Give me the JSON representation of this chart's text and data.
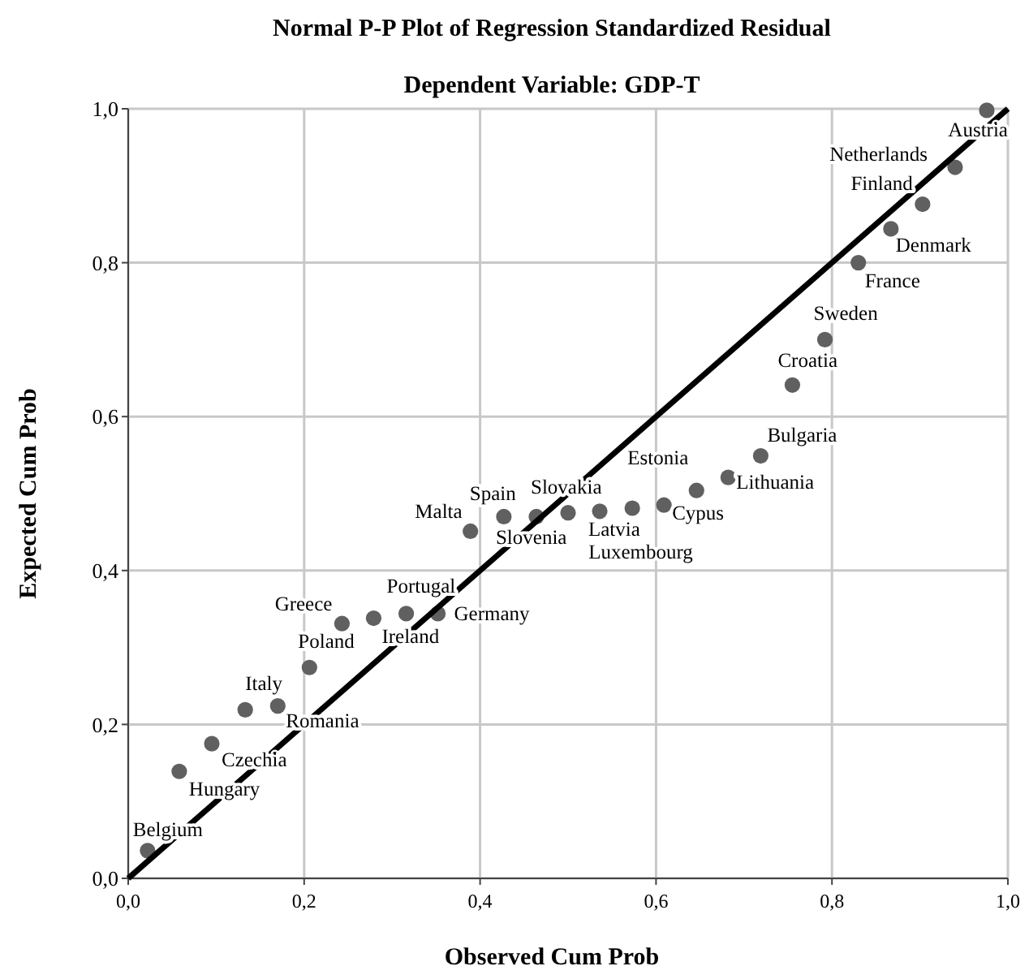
{
  "chart_data": {
    "type": "scatter",
    "title": "Normal P-P Plot of Regression Standardized Residual",
    "subtitle": "Dependent Variable: GDP-T",
    "xlabel": "Observed Cum Prob",
    "ylabel": "Expected Cum Prob",
    "xlim": [
      0,
      1
    ],
    "ylim": [
      0,
      1
    ],
    "xticks": [
      {
        "value": 0,
        "label": "0,0"
      },
      {
        "value": 0.2,
        "label": "0,2"
      },
      {
        "value": 0.4,
        "label": "0,4"
      },
      {
        "value": 0.6,
        "label": "0,6"
      },
      {
        "value": 0.8,
        "label": "0,8"
      },
      {
        "value": 1,
        "label": "1,0"
      }
    ],
    "yticks": [
      {
        "value": 0,
        "label": "0,0"
      },
      {
        "value": 0.2,
        "label": "0,2"
      },
      {
        "value": 0.4,
        "label": "0,4"
      },
      {
        "value": 0.6,
        "label": "0,6"
      },
      {
        "value": 0.8,
        "label": "0,8"
      },
      {
        "value": 1,
        "label": "1,0"
      }
    ],
    "grid": true,
    "series": [
      {
        "marker": "circle",
        "color": "#606060",
        "x": [
          0.022,
          0.058,
          0.095,
          0.133,
          0.17,
          0.206,
          0.243,
          0.279,
          0.316,
          0.352,
          0.389,
          0.427,
          0.464,
          0.5,
          0.536,
          0.573,
          0.609,
          0.646,
          0.682,
          0.719,
          0.755,
          0.792,
          0.83,
          0.867,
          0.903,
          0.94,
          0.976
        ],
        "values": [
          0.036,
          0.139,
          0.175,
          0.219,
          0.224,
          0.274,
          0.331,
          0.338,
          0.344,
          0.344,
          0.451,
          0.47,
          0.47,
          0.475,
          0.477,
          0.481,
          0.485,
          0.504,
          0.521,
          0.549,
          0.641,
          0.7,
          0.8,
          0.844,
          0.876,
          0.924,
          0.998
        ]
      },
      {
        "type": "line",
        "color": "#000000",
        "x": [
          0,
          1
        ],
        "values": [
          0,
          1
        ],
        "line_style": "solid"
      }
    ],
    "annotations": [
      {
        "text": "Belgium",
        "x": 0.022,
        "y": 0.036
      },
      {
        "text": "Hungary",
        "x": 0.058,
        "y": 0.139
      },
      {
        "text": "Czechia",
        "x": 0.095,
        "y": 0.175
      },
      {
        "text": "Italy",
        "x": 0.133,
        "y": 0.219
      },
      {
        "text": "Romania",
        "x": 0.17,
        "y": 0.224
      },
      {
        "text": "Poland",
        "x": 0.206,
        "y": 0.274
      },
      {
        "text": "Greece",
        "x": 0.243,
        "y": 0.331
      },
      {
        "text": "Ireland",
        "x": 0.279,
        "y": 0.338
      },
      {
        "text": "Portugal",
        "x": 0.316,
        "y": 0.344
      },
      {
        "text": "Germany",
        "x": 0.352,
        "y": 0.344
      },
      {
        "text": "Malta",
        "x": 0.389,
        "y": 0.451
      },
      {
        "text": "Spain",
        "x": 0.427,
        "y": 0.47
      },
      {
        "text": "Slovenia",
        "x": 0.464,
        "y": 0.47
      },
      {
        "text": "Slovakia",
        "x": 0.5,
        "y": 0.475
      },
      {
        "text": "Latvia",
        "x": 0.536,
        "y": 0.477
      },
      {
        "text": "Luxembourg",
        "x": 0.573,
        "y": 0.481
      },
      {
        "text": "Cypus",
        "x": 0.609,
        "y": 0.485
      },
      {
        "text": "Estonia",
        "x": 0.646,
        "y": 0.504
      },
      {
        "text": "Lithuania",
        "x": 0.682,
        "y": 0.521
      },
      {
        "text": "Bulgaria",
        "x": 0.719,
        "y": 0.549
      },
      {
        "text": "Croatia",
        "x": 0.755,
        "y": 0.641
      },
      {
        "text": "Sweden",
        "x": 0.792,
        "y": 0.7
      },
      {
        "text": "France",
        "x": 0.83,
        "y": 0.8
      },
      {
        "text": "Denmark",
        "x": 0.867,
        "y": 0.844
      },
      {
        "text": "Finland",
        "x": 0.903,
        "y": 0.876
      },
      {
        "text": "Netherlands",
        "x": 0.94,
        "y": 0.924
      },
      {
        "text": "Austria",
        "x": 0.976,
        "y": 0.998
      }
    ]
  }
}
